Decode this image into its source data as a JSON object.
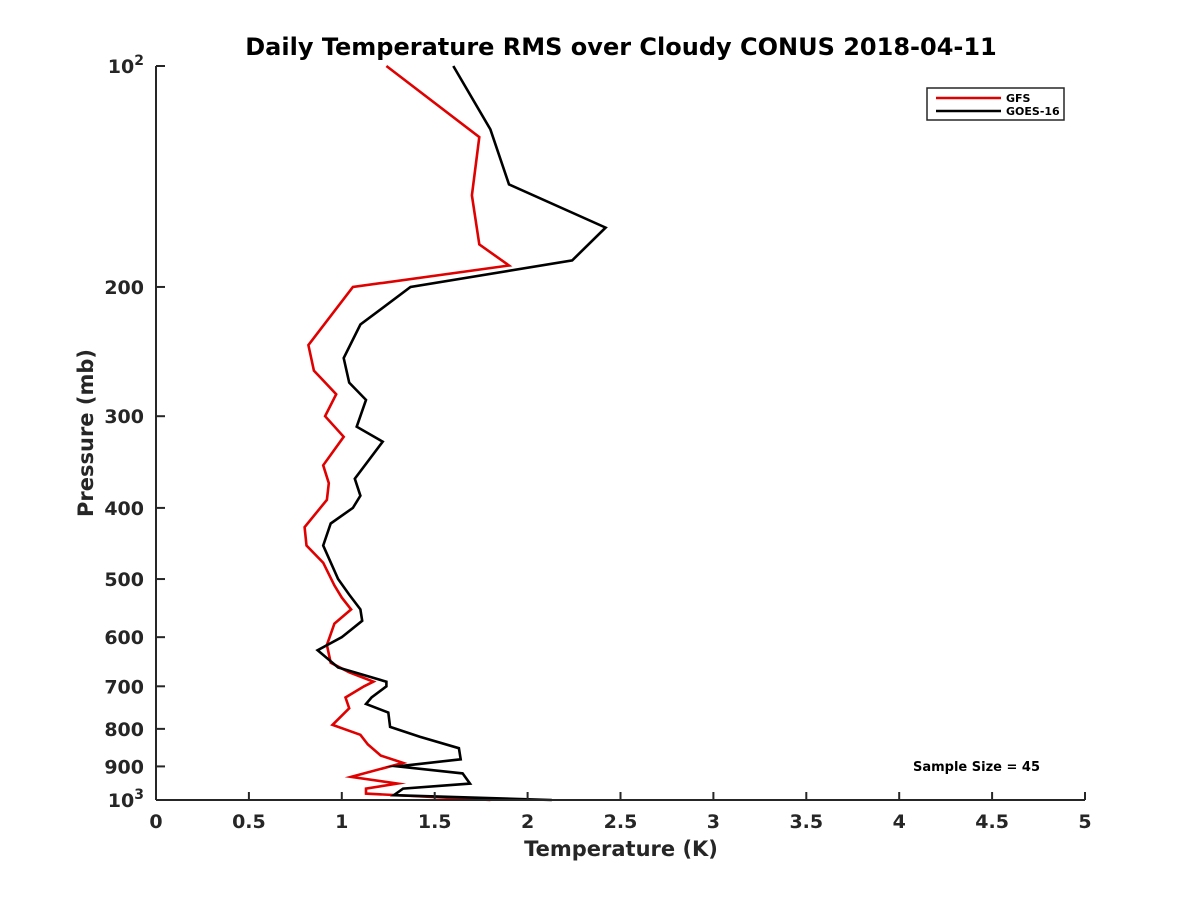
{
  "chart_data": {
    "type": "line",
    "title": "Daily Temperature RMS over Cloudy CONUS 2018-04-11",
    "xlabel": "Temperature (K)",
    "ylabel": "Pressure (mb)",
    "xlim": [
      0,
      5
    ],
    "ylim": [
      100,
      1000
    ],
    "y_scale": "log",
    "y_reversed": true,
    "x_ticks": [
      0,
      0.5,
      1,
      1.5,
      2,
      2.5,
      3,
      3.5,
      4,
      4.5,
      5
    ],
    "x_tick_labels": [
      "0",
      "0.5",
      "1",
      "1.5",
      "2",
      "2.5",
      "3",
      "3.5",
      "4",
      "4.5",
      "5"
    ],
    "y_ticks": [
      100,
      200,
      300,
      400,
      500,
      600,
      700,
      800,
      900,
      1000
    ],
    "y_tick_labels": [
      "10^2",
      "200",
      "300",
      "400",
      "500",
      "600",
      "700",
      "800",
      "900",
      "10^3"
    ],
    "grid": false,
    "legend_position": "top-right",
    "annotation": "Sample Size = 45",
    "series": [
      {
        "name": "GFS",
        "color": "#e00000",
        "points": [
          [
            1.24,
            100
          ],
          [
            1.74,
            125
          ],
          [
            1.7,
            150
          ],
          [
            1.74,
            175
          ],
          [
            1.9,
            187
          ],
          [
            1.06,
            200
          ],
          [
            0.82,
            240
          ],
          [
            0.85,
            260
          ],
          [
            0.97,
            280
          ],
          [
            0.91,
            300
          ],
          [
            1.01,
            320
          ],
          [
            0.9,
            350
          ],
          [
            0.93,
            370
          ],
          [
            0.92,
            390
          ],
          [
            0.8,
            425
          ],
          [
            0.81,
            450
          ],
          [
            0.9,
            475
          ],
          [
            0.96,
            510
          ],
          [
            1.0,
            530
          ],
          [
            1.05,
            550
          ],
          [
            0.96,
            575
          ],
          [
            0.92,
            615
          ],
          [
            0.94,
            650
          ],
          [
            1.04,
            670
          ],
          [
            1.17,
            690
          ],
          [
            1.12,
            700
          ],
          [
            1.02,
            725
          ],
          [
            1.04,
            750
          ],
          [
            0.95,
            790
          ],
          [
            1.1,
            815
          ],
          [
            1.14,
            840
          ],
          [
            1.21,
            870
          ],
          [
            1.33,
            890
          ],
          [
            1.05,
            930
          ],
          [
            1.3,
            950
          ],
          [
            1.13,
            965
          ],
          [
            1.13,
            980
          ],
          [
            1.8,
            1000
          ]
        ]
      },
      {
        "name": "GOES-16",
        "color": "#000000",
        "points": [
          [
            1.6,
            100
          ],
          [
            1.8,
            122
          ],
          [
            1.9,
            145
          ],
          [
            2.42,
            166
          ],
          [
            2.24,
            184
          ],
          [
            1.37,
            200
          ],
          [
            1.1,
            225
          ],
          [
            1.01,
            250
          ],
          [
            1.04,
            270
          ],
          [
            1.13,
            285
          ],
          [
            1.08,
            310
          ],
          [
            1.22,
            325
          ],
          [
            1.07,
            365
          ],
          [
            1.1,
            385
          ],
          [
            1.06,
            400
          ],
          [
            0.94,
            420
          ],
          [
            0.9,
            450
          ],
          [
            0.98,
            500
          ],
          [
            1.04,
            525
          ],
          [
            1.1,
            550
          ],
          [
            1.11,
            570
          ],
          [
            1.0,
            600
          ],
          [
            0.87,
            625
          ],
          [
            0.98,
            660
          ],
          [
            1.24,
            690
          ],
          [
            1.24,
            700
          ],
          [
            1.16,
            725
          ],
          [
            1.13,
            740
          ],
          [
            1.25,
            760
          ],
          [
            1.26,
            795
          ],
          [
            1.42,
            820
          ],
          [
            1.63,
            850
          ],
          [
            1.64,
            880
          ],
          [
            1.3,
            900
          ],
          [
            1.65,
            920
          ],
          [
            1.69,
            950
          ],
          [
            1.33,
            965
          ],
          [
            1.28,
            985
          ],
          [
            2.13,
            1000
          ]
        ]
      }
    ]
  }
}
